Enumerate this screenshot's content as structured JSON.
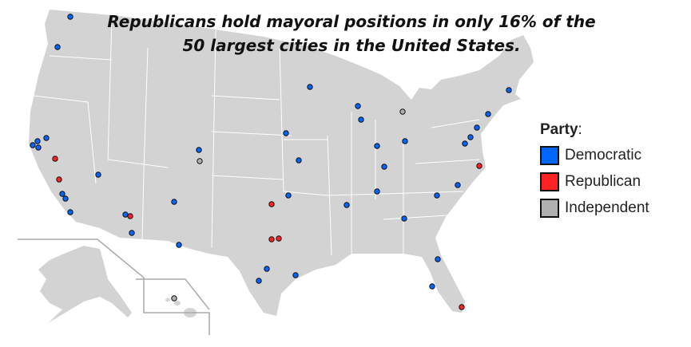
{
  "title": {
    "line1": "Republicans hold mayoral positions in only 16% of the",
    "line2": "50 largest cities in the United States."
  },
  "legend": {
    "heading": "Party",
    "heading_suffix": ":",
    "items": [
      {
        "label": "Democratic",
        "color": "#0066ff"
      },
      {
        "label": "Republican",
        "color": "#ff2222"
      },
      {
        "label": "Independent",
        "color": "#b0b0b0"
      }
    ]
  },
  "map": {
    "land_color": "#d3d3d3",
    "border_color": "#ffffff",
    "city_parties": [
      "D",
      "D",
      "D",
      "D",
      "D",
      "D",
      "R",
      "R",
      "D",
      "D",
      "D",
      "D",
      "D",
      "R",
      "D",
      "D",
      "D",
      "D",
      "I",
      "R",
      "D",
      "R",
      "R",
      "D",
      "D",
      "D",
      "D",
      "D",
      "D",
      "D",
      "D",
      "D",
      "D",
      "D",
      "D",
      "I",
      "D",
      "D",
      "D",
      "R",
      "D",
      "D",
      "D",
      "D",
      "D",
      "D",
      "D",
      "R",
      "I",
      "D"
    ]
  }
}
